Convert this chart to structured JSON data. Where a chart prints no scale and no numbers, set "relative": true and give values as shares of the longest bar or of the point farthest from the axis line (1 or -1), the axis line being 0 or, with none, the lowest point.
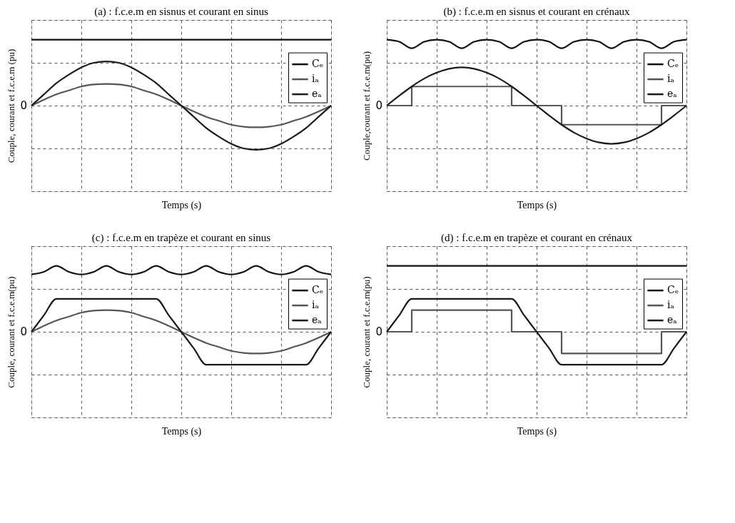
{
  "chart_data": [
    {
      "type": "line",
      "title": "(a) : f.c.e.m en sisnus et courant en sinus",
      "xlabel": "Temps (s)",
      "ylabel": "Couple, courant et f.c.e.m (pu)",
      "relative": true,
      "grid": true,
      "legend": "top right",
      "annotations": [
        "0"
      ],
      "categories": [
        null,
        null,
        null,
        null,
        null,
        null,
        null,
        null,
        null,
        null,
        null,
        null,
        null,
        null,
        null,
        null,
        null,
        null,
        null,
        null,
        null,
        null,
        null,
        null,
        null
      ],
      "series": [
        {
          "name": "Cₑ",
          "type": "line",
          "color": "#111111",
          "values": [
            1,
            1,
            1,
            1,
            1,
            1,
            1,
            1,
            1,
            1,
            1,
            1,
            1,
            1,
            1,
            1,
            1,
            1,
            1,
            1,
            1,
            1,
            1,
            1,
            1
          ]
        },
        {
          "name": "iₐ",
          "type": "line",
          "color": "#555555",
          "values": [
            0,
            0.09,
            0.17,
            0.23,
            0.29,
            0.32,
            0.33,
            0.32,
            0.29,
            0.23,
            0.17,
            0.09,
            0,
            -0.09,
            -0.17,
            -0.23,
            -0.29,
            -0.32,
            -0.33,
            -0.32,
            -0.29,
            -0.23,
            -0.17,
            -0.09,
            0
          ]
        },
        {
          "name": "eₐ",
          "type": "line",
          "color": "#1a1a1a",
          "values": [
            0,
            0.17,
            0.34,
            0.47,
            0.58,
            0.65,
            0.67,
            0.65,
            0.58,
            0.47,
            0.34,
            0.17,
            0,
            -0.17,
            -0.34,
            -0.47,
            -0.58,
            -0.65,
            -0.67,
            -0.65,
            -0.58,
            -0.47,
            -0.34,
            -0.17,
            0
          ]
        }
      ]
    },
    {
      "type": "line",
      "title": "(b) : f.c.e.m en sisnus et courant en crénaux",
      "xlabel": "Temps (s)",
      "ylabel": "Couple,courant et f.c.e.m(pu)",
      "relative": true,
      "grid": true,
      "legend": "top right",
      "annotations": [
        "0"
      ],
      "categories": [
        null,
        null,
        null,
        null,
        null,
        null,
        null,
        null,
        null,
        null,
        null,
        null,
        null,
        null,
        null,
        null,
        null,
        null,
        null,
        null,
        null,
        null,
        null,
        null,
        null
      ],
      "series": [
        {
          "name": "Cₑ",
          "type": "line",
          "color": "#111111",
          "values": [
            1,
            0.97,
            0.87,
            0.97,
            1,
            0.97,
            0.87,
            0.97,
            1,
            0.97,
            0.87,
            0.97,
            1,
            0.97,
            0.87,
            0.97,
            1,
            0.97,
            0.87,
            0.97,
            1,
            0.97,
            0.87,
            0.97,
            1
          ]
        },
        {
          "name": "iₐ",
          "type": "step",
          "color": "#555555",
          "values": [
            0,
            0,
            0.29,
            0.29,
            0.29,
            0.29,
            0.29,
            0.29,
            0.29,
            0.29,
            0,
            0,
            0,
            0,
            -0.29,
            -0.29,
            -0.29,
            -0.29,
            -0.29,
            -0.29,
            -0.29,
            -0.29,
            0,
            0,
            0
          ]
        },
        {
          "name": "eₐ",
          "type": "line",
          "color": "#1a1a1a",
          "values": [
            0,
            0.15,
            0.29,
            0.41,
            0.5,
            0.56,
            0.58,
            0.56,
            0.5,
            0.41,
            0.29,
            0.15,
            0,
            -0.15,
            -0.29,
            -0.41,
            -0.5,
            -0.56,
            -0.58,
            -0.56,
            -0.5,
            -0.41,
            -0.29,
            -0.15,
            0
          ]
        }
      ]
    },
    {
      "type": "line",
      "title": "(c) : f.c.e.m en trapèze et courant en sinus",
      "xlabel": "Temps (s)",
      "ylabel": "Couple, courant et f.c.e.m(pu)",
      "relative": true,
      "grid": true,
      "legend": "top right",
      "annotations": [
        "0"
      ],
      "categories": [
        null,
        null,
        null,
        null,
        null,
        null,
        null,
        null,
        null,
        null,
        null,
        null,
        null,
        null,
        null,
        null,
        null,
        null,
        null,
        null,
        null,
        null,
        null,
        null,
        null
      ],
      "series": [
        {
          "name": "Cₑ",
          "type": "line",
          "color": "#111111",
          "values": [
            0.87,
            0.91,
            1,
            0.91,
            0.87,
            0.91,
            1,
            0.91,
            0.87,
            0.91,
            1,
            0.91,
            0.87,
            0.91,
            1,
            0.91,
            0.87,
            0.91,
            1,
            0.91,
            0.87,
            0.91,
            1,
            0.91,
            0.87
          ]
        },
        {
          "name": "iₐ",
          "type": "line",
          "color": "#555555",
          "values": [
            0,
            0.09,
            0.17,
            0.23,
            0.29,
            0.32,
            0.33,
            0.32,
            0.29,
            0.23,
            0.17,
            0.09,
            0,
            -0.09,
            -0.17,
            -0.23,
            -0.29,
            -0.32,
            -0.33,
            -0.32,
            -0.29,
            -0.23,
            -0.17,
            -0.09,
            0
          ]
        },
        {
          "name": "eₐ",
          "type": "line",
          "color": "#1a1a1a",
          "values": [
            0,
            0.25,
            0.5,
            0.5,
            0.5,
            0.5,
            0.5,
            0.5,
            0.5,
            0.5,
            0.5,
            0.25,
            0,
            -0.25,
            -0.5,
            -0.5,
            -0.5,
            -0.5,
            -0.5,
            -0.5,
            -0.5,
            -0.5,
            -0.5,
            -0.25,
            0
          ]
        }
      ]
    },
    {
      "type": "line",
      "title": "(d) : f.c.e.m en trapèze et courant en crénaux",
      "xlabel": "Temps (s)",
      "ylabel": "Couple, courant et f.c.e.m(pu)",
      "relative": true,
      "grid": true,
      "legend": "top right",
      "annotations": [
        "0"
      ],
      "categories": [
        null,
        null,
        null,
        null,
        null,
        null,
        null,
        null,
        null,
        null,
        null,
        null,
        null,
        null,
        null,
        null,
        null,
        null,
        null,
        null,
        null,
        null,
        null,
        null,
        null
      ],
      "series": [
        {
          "name": "Cₑ",
          "type": "line",
          "color": "#111111",
          "values": [
            1,
            1,
            1,
            1,
            1,
            1,
            1,
            1,
            1,
            1,
            1,
            1,
            1,
            1,
            1,
            1,
            1,
            1,
            1,
            1,
            1,
            1,
            1,
            1,
            1
          ]
        },
        {
          "name": "iₐ",
          "type": "step",
          "color": "#555555",
          "values": [
            0,
            0,
            0.33,
            0.33,
            0.33,
            0.33,
            0.33,
            0.33,
            0.33,
            0.33,
            0,
            0,
            0,
            0,
            -0.33,
            -0.33,
            -0.33,
            -0.33,
            -0.33,
            -0.33,
            -0.33,
            -0.33,
            0,
            0,
            0
          ]
        },
        {
          "name": "eₐ",
          "type": "line",
          "color": "#1a1a1a",
          "values": [
            0,
            0.25,
            0.5,
            0.5,
            0.5,
            0.5,
            0.5,
            0.5,
            0.5,
            0.5,
            0.5,
            0.25,
            0,
            -0.25,
            -0.5,
            -0.5,
            -0.5,
            -0.5,
            -0.5,
            -0.5,
            -0.5,
            -0.5,
            -0.5,
            -0.25,
            0
          ]
        }
      ]
    }
  ]
}
